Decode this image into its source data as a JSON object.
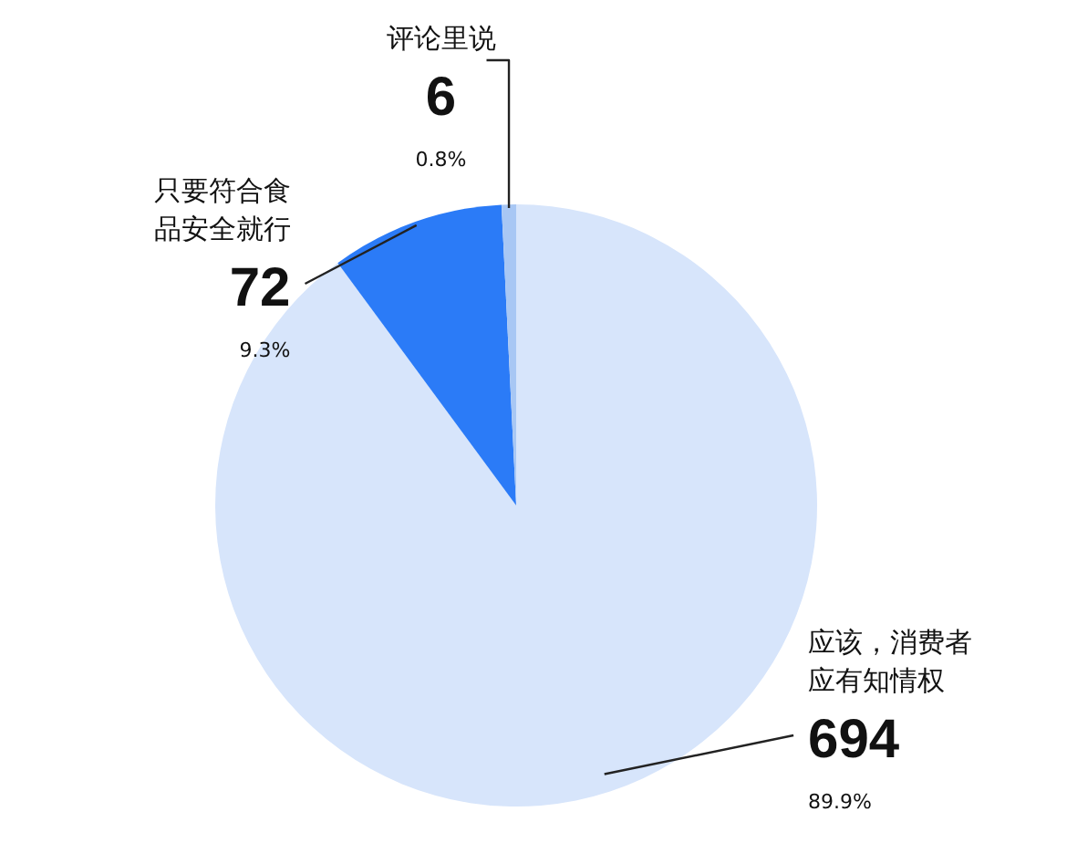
{
  "chart_data": {
    "type": "pie",
    "categories": [
      "应该，消费者应有知情权",
      "只要符合食品安全就行",
      "评论里说"
    ],
    "values": [
      694,
      72,
      6
    ],
    "colors": [
      "#d7e5fb",
      "#2b7bf7",
      "#a8c7f4"
    ],
    "data_labels": true,
    "annotations": [
      "89.9%",
      "9.3%",
      "0.8%"
    ]
  }
}
